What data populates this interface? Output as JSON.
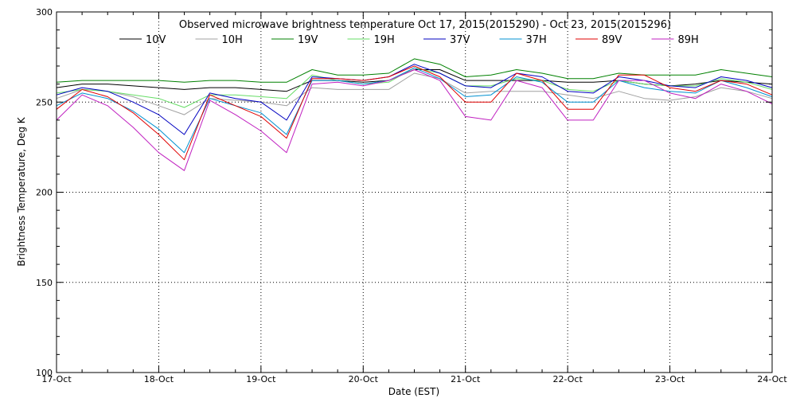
{
  "chart_data": {
    "type": "line",
    "title": "Observed microwave brightness temperature Oct 17, 2015(2015290) - Oct 23, 2015(2015296)",
    "xlabel": "Date (EST)",
    "ylabel": "Brightness Temperature, Deg K",
    "ylim": [
      100,
      300
    ],
    "xlim": [
      0,
      7
    ],
    "yticks": [
      100,
      150,
      200,
      250,
      300
    ],
    "xticks": [
      0,
      1,
      2,
      3,
      4,
      5,
      6,
      7
    ],
    "xtick_labels": [
      "17-Oct",
      "18-Oct",
      "19-Oct",
      "20-Oct",
      "21-Oct",
      "22-Oct",
      "23-Oct",
      "24-Oct"
    ],
    "grid": true,
    "legend_position": "top",
    "x": [
      0,
      0.25,
      0.5,
      0.75,
      1.0,
      1.25,
      1.5,
      1.75,
      2.0,
      2.25,
      2.5,
      2.75,
      3.0,
      3.25,
      3.5,
      3.75,
      4.0,
      4.25,
      4.5,
      4.75,
      5.0,
      5.25,
      5.5,
      5.75,
      6.0,
      6.25,
      6.5,
      6.75,
      7.0
    ],
    "series": [
      {
        "name": "10V",
        "color": "#000000",
        "values": [
          258,
          260,
          260,
          259,
          258,
          257,
          258,
          258,
          257,
          256,
          262,
          262,
          261,
          262,
          268,
          268,
          262,
          262,
          262,
          262,
          261,
          261,
          262,
          260,
          259,
          260,
          262,
          261,
          260
        ]
      },
      {
        "name": "10H",
        "color": "#a0a0a0",
        "values": [
          252,
          257,
          256,
          253,
          248,
          243,
          252,
          251,
          250,
          248,
          258,
          257,
          257,
          257,
          266,
          263,
          255,
          256,
          256,
          256,
          254,
          252,
          256,
          252,
          251,
          253,
          258,
          256,
          252
        ]
      },
      {
        "name": "19V",
        "color": "#008000",
        "values": [
          261,
          262,
          262,
          262,
          262,
          261,
          262,
          262,
          261,
          261,
          268,
          265,
          265,
          266,
          274,
          271,
          264,
          265,
          268,
          266,
          263,
          263,
          266,
          265,
          265,
          265,
          268,
          266,
          264
        ]
      },
      {
        "name": "19H",
        "color": "#66dd66",
        "values": [
          255,
          257,
          256,
          254,
          252,
          247,
          254,
          254,
          253,
          252,
          265,
          262,
          260,
          261,
          269,
          266,
          259,
          259,
          263,
          262,
          257,
          256,
          262,
          260,
          259,
          259,
          263,
          261,
          257
        ]
      },
      {
        "name": "37V",
        "color": "#0000c0",
        "values": [
          254,
          258,
          256,
          250,
          243,
          232,
          255,
          252,
          250,
          240,
          264,
          263,
          262,
          264,
          271,
          266,
          259,
          258,
          266,
          264,
          256,
          255,
          264,
          262,
          259,
          258,
          264,
          262,
          258
        ]
      },
      {
        "name": "37H",
        "color": "#0090d0",
        "values": [
          248,
          255,
          252,
          245,
          235,
          222,
          252,
          248,
          244,
          232,
          262,
          262,
          260,
          262,
          269,
          263,
          253,
          254,
          264,
          261,
          250,
          250,
          262,
          258,
          256,
          255,
          262,
          258,
          253
        ]
      },
      {
        "name": "89V",
        "color": "#e00000",
        "values": [
          246,
          257,
          253,
          244,
          232,
          218,
          254,
          248,
          242,
          230,
          263,
          263,
          262,
          264,
          270,
          264,
          250,
          250,
          266,
          262,
          246,
          246,
          265,
          265,
          258,
          256,
          262,
          260,
          254
        ]
      },
      {
        "name": "89H",
        "color": "#c020c0",
        "values": [
          240,
          254,
          248,
          236,
          222,
          212,
          251,
          243,
          234,
          222,
          260,
          261,
          259,
          262,
          268,
          262,
          242,
          240,
          262,
          258,
          240,
          240,
          262,
          262,
          255,
          252,
          260,
          256,
          249
        ]
      }
    ]
  }
}
